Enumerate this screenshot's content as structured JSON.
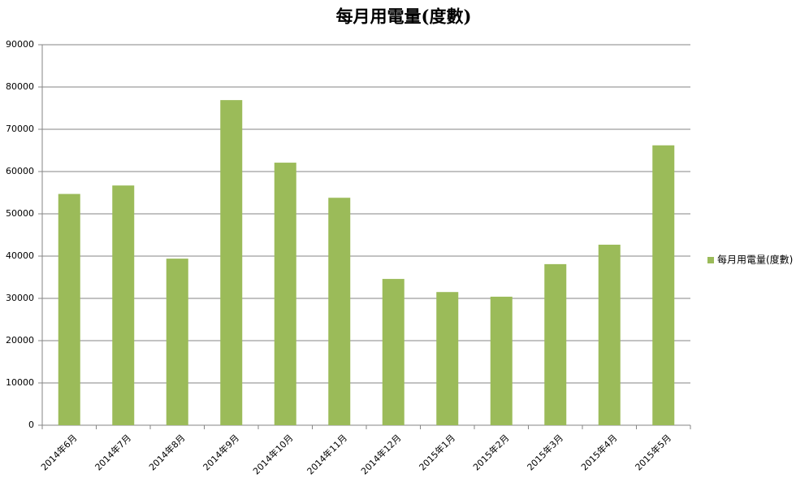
{
  "chart_data": {
    "type": "bar",
    "title": "每月用電量(度數)",
    "categories": [
      "2014年6月",
      "2014年7月",
      "2014年8月",
      "2014年9月",
      "2014年10月",
      "2014年11月",
      "2014年12月",
      "2015年1月",
      "2015年2月",
      "2015年3月",
      "2015年4月",
      "2015年5月"
    ],
    "series": [
      {
        "name": "每月用電量(度數)",
        "color": "#9bbb59",
        "values": [
          54700,
          56700,
          39400,
          76900,
          62100,
          53800,
          34600,
          31500,
          30400,
          38100,
          42700,
          66200
        ]
      }
    ],
    "ylim": [
      0,
      90000
    ],
    "yticks": [
      0,
      10000,
      20000,
      30000,
      40000,
      50000,
      60000,
      70000,
      80000,
      90000
    ],
    "grid": true,
    "legend": "right"
  }
}
